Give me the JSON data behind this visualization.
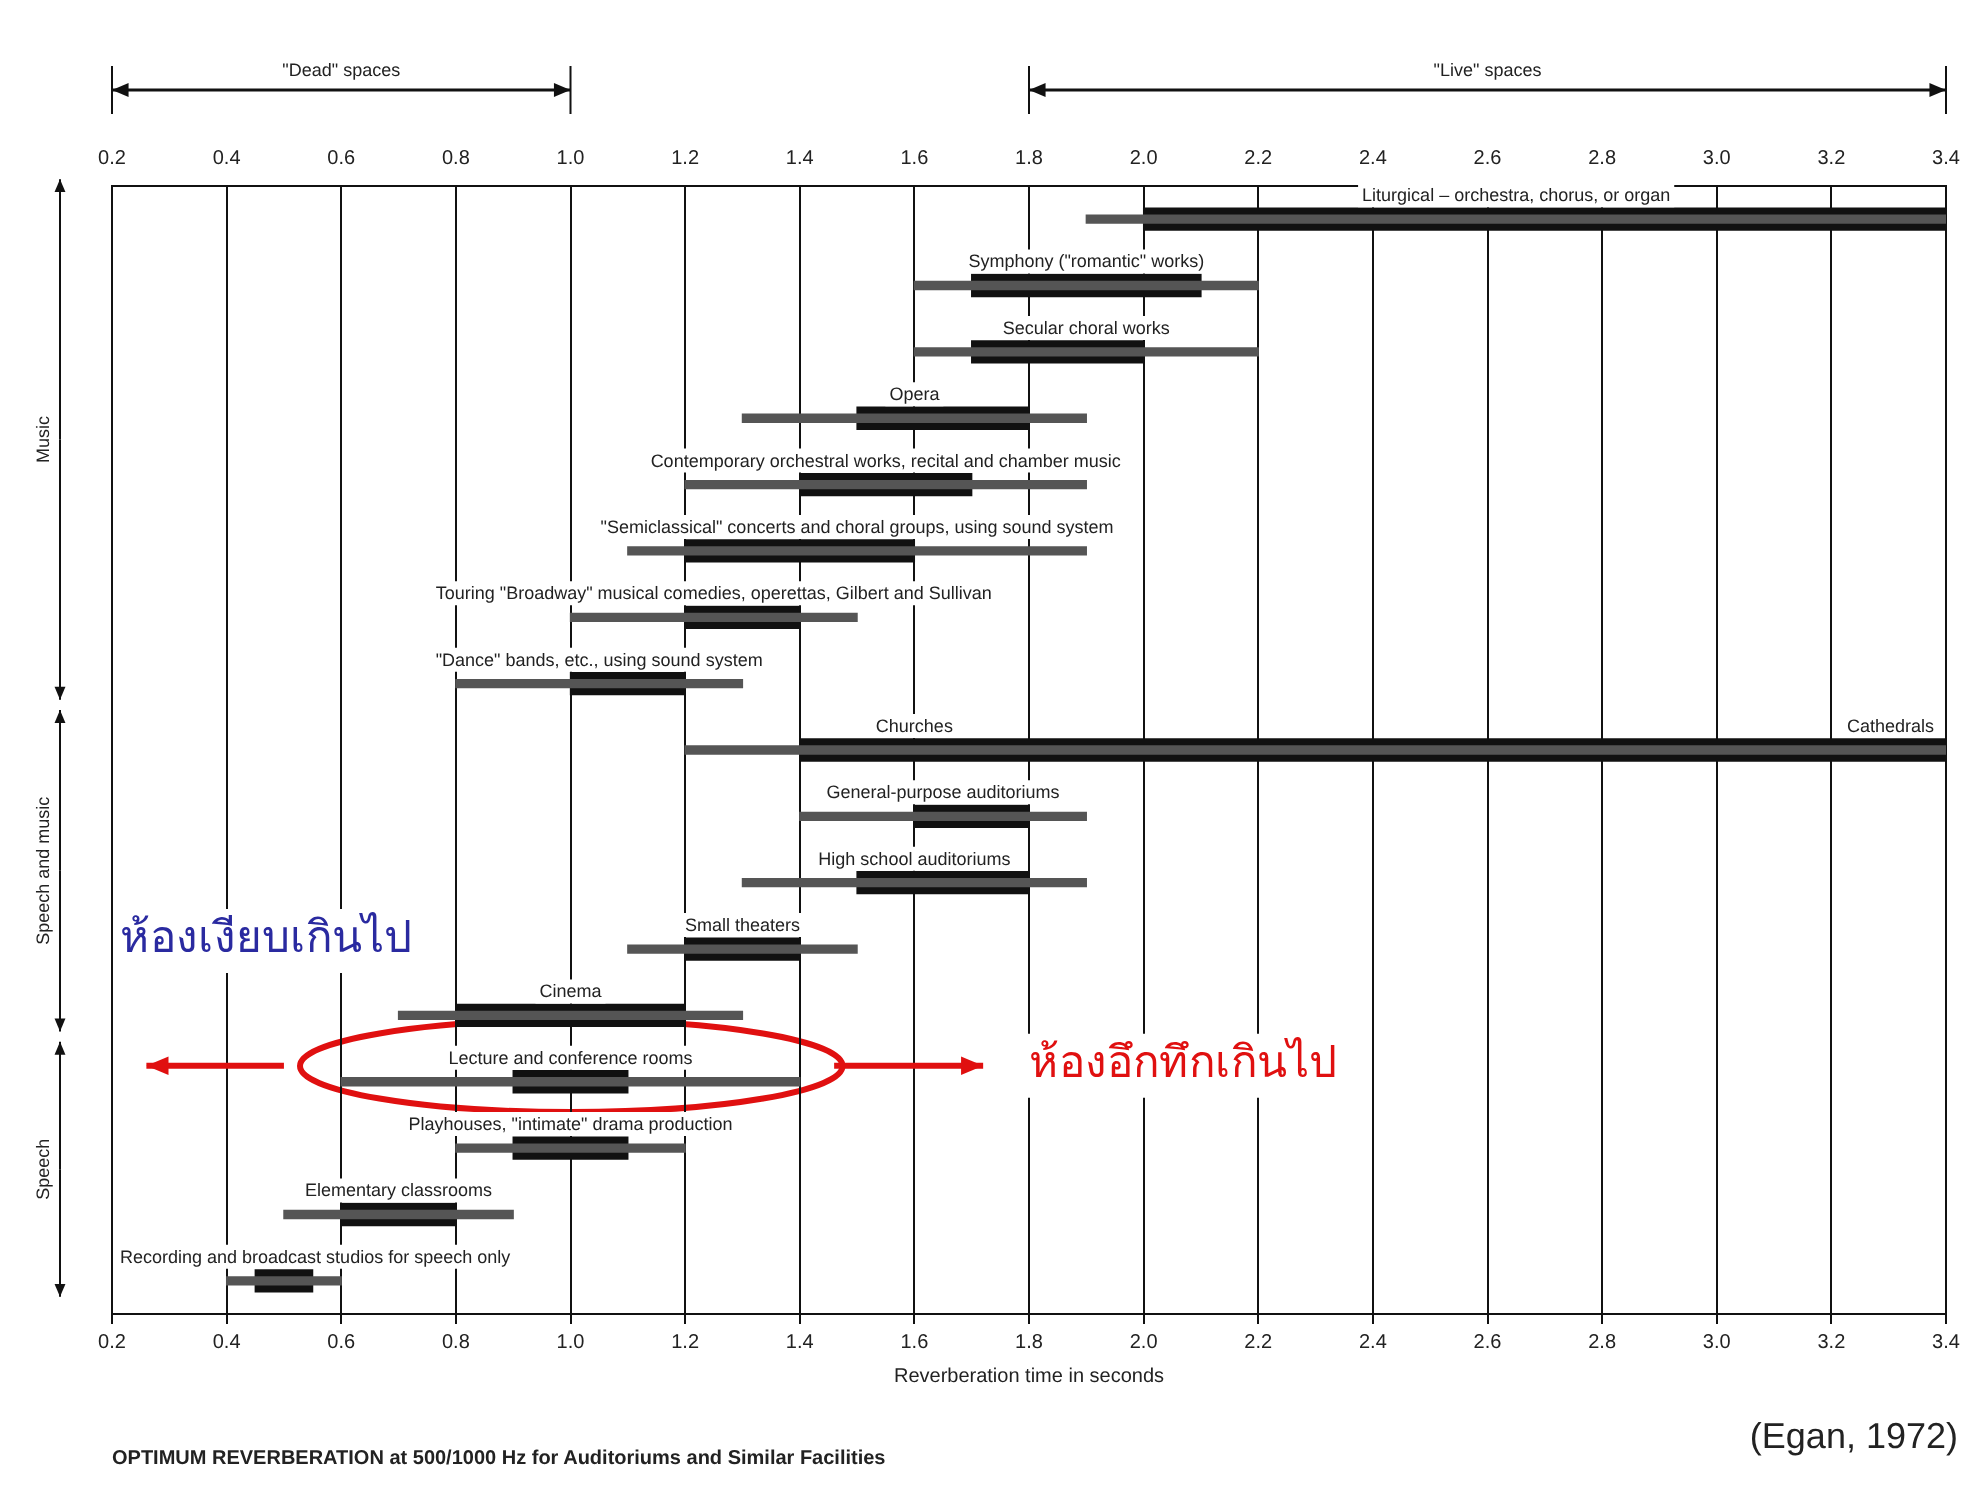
{
  "chart_data": {
    "type": "bar",
    "orientation": "horizontal",
    "title": "OPTIMUM REVERBERATION at 500/1000 Hz for Auditoriums and Similar Facilities",
    "xlabel": "Reverberation time in seconds",
    "categories": [
      "Liturgical – orchestra, chorus, or organ",
      "Symphony (\"romantic\" works)",
      "Secular choral works",
      "Opera",
      "Contemporary orchestral works, recital and chamber music",
      "\"Semiclassical\" concerts and choral groups, using sound system",
      "Touring \"Broadway\" musical comedies, operettas, Gilbert and Sullivan",
      "\"Dance\" bands, etc., using sound system",
      "Churches",
      "General-purpose auditoriums",
      "High school auditoriums",
      "Small theaters",
      "Cinema",
      "Lecture and conference rooms",
      "Playhouses, \"intimate\" drama production",
      "Elementary classrooms",
      "Recording and broadcast studios for speech only"
    ],
    "series": [
      {
        "type": "bar",
        "color": "#555555",
        "base": [
          1.9,
          1.6,
          1.6,
          1.3,
          1.2,
          1.1,
          1.0,
          0.8,
          1.2,
          1.4,
          1.3,
          1.1,
          0.7,
          0.6,
          0.8,
          0.5,
          0.4
        ],
        "values": [
          1.5,
          0.6,
          0.6,
          0.6,
          0.7,
          0.8,
          0.5,
          0.5,
          2.2,
          0.5,
          0.6,
          0.4,
          0.6,
          0.8,
          0.4,
          0.4,
          0.2
        ]
      },
      {
        "type": "bar",
        "color": "#111111",
        "base": [
          2.0,
          1.7,
          1.7,
          1.5,
          1.4,
          1.2,
          1.2,
          1.0,
          1.4,
          1.6,
          1.5,
          1.2,
          0.8,
          0.9,
          0.9,
          0.6,
          0.45
        ],
        "values": [
          1.4,
          0.4,
          0.3,
          0.3,
          0.3,
          0.4,
          0.2,
          0.2,
          2.0,
          0.2,
          0.3,
          0.2,
          0.4,
          0.2,
          0.2,
          0.2,
          0.1
        ]
      }
    ],
    "xlim": [
      0.2,
      3.4
    ],
    "xticks": [
      0.2,
      0.4,
      0.6,
      0.8,
      {
        "value": 1,
        "label": "1.0"
      },
      1.2,
      1.4,
      1.6,
      1.8,
      {
        "value": 2,
        "label": "2.0"
      },
      2.2,
      2.4,
      2.6,
      2.8,
      {
        "value": 3,
        "label": "3.0"
      },
      3.2,
      3.4
    ],
    "x2lim": [
      0.2,
      3.4
    ],
    "x2ticks": [
      0.2,
      0.4,
      0.6,
      0.8,
      {
        "value": 1,
        "label": "1.0"
      },
      1.2,
      1.4,
      1.6,
      1.8,
      {
        "value": 2,
        "label": "2.0"
      },
      2.2,
      2.4,
      2.6,
      2.8,
      {
        "value": 3,
        "label": "3.0"
      },
      3.2,
      3.4
    ],
    "grid": "x",
    "legend": false,
    "annotations": [
      "Cathedrals",
      "Music",
      "Speech and music",
      "Speech",
      "ห้องเงียบเกินไป",
      "ห้องอึกทึกเกินไป",
      "(Egan, 1972)",
      "\"Dead\" spaces",
      "\"Live\" spaces"
    ]
  }
}
